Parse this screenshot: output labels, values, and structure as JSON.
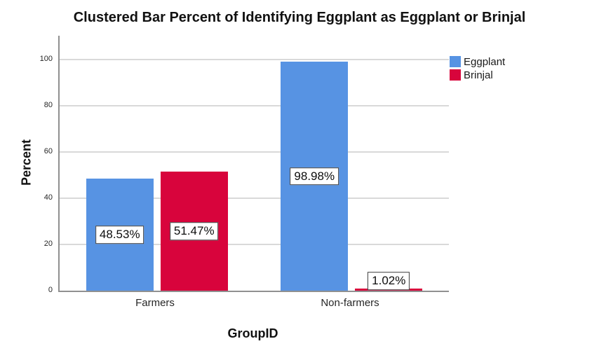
{
  "chart_data": {
    "type": "bar",
    "title": "Clustered Bar Percent of Identifying Eggplant as Eggplant or Brinjal",
    "xlabel": "GroupID",
    "ylabel": "Percent",
    "categories": [
      "Farmers",
      "Non-farmers"
    ],
    "series": [
      {
        "name": "Eggplant",
        "color": "#5793E3",
        "values": [
          48.53,
          98.98
        ],
        "data_labels": [
          "48.53%",
          "98.98%"
        ]
      },
      {
        "name": "Brinjal",
        "color": "#D8043C",
        "values": [
          51.47,
          1.02
        ],
        "data_labels": [
          "51.47%",
          "1.02%"
        ]
      }
    ],
    "ylim": [
      0,
      100
    ],
    "yticks": [
      0,
      20,
      40,
      60,
      80,
      100
    ],
    "grid": "horizontal",
    "legend_position": "top-right",
    "colors": {
      "axis_line": "#909090",
      "gridline": "#d9d9d9",
      "label_box_border": "#3d3d3d",
      "label_box_bg": "#ffffff",
      "text": "#111111"
    }
  }
}
